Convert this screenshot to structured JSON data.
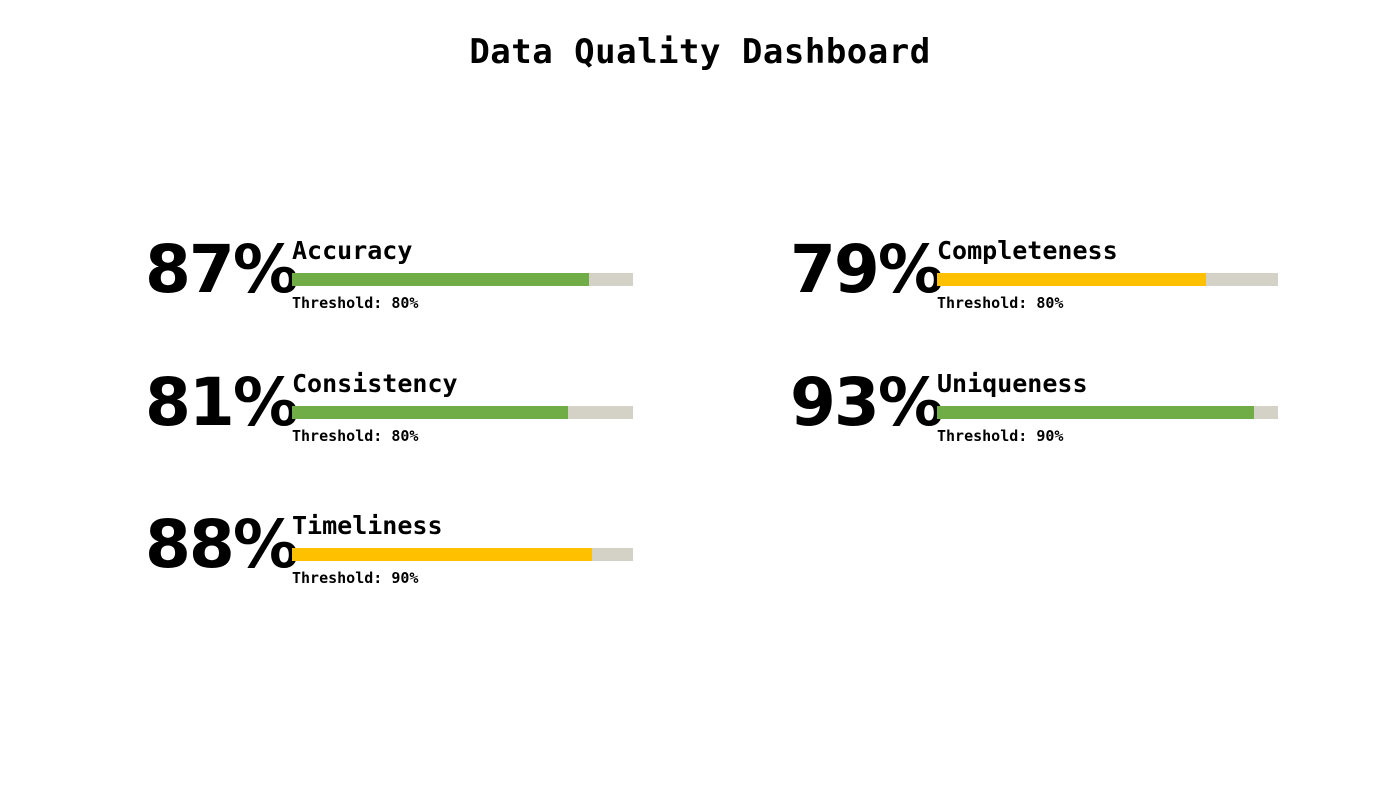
{
  "chart_data": {
    "type": "bar",
    "title": "Data Quality Dashboard",
    "categories": [
      "Accuracy",
      "Completeness",
      "Consistency",
      "Uniqueness",
      "Timeliness"
    ],
    "values": [
      87,
      79,
      81,
      93,
      88
    ],
    "thresholds": [
      80,
      80,
      80,
      90,
      90
    ],
    "ylim": [
      0,
      100
    ],
    "grid": false,
    "metrics": [
      {
        "value_text": "87%",
        "label": "Accuracy",
        "value": 87,
        "threshold": 80,
        "threshold_text": "Threshold: 80%",
        "color": "#70ad47"
      },
      {
        "value_text": "79%",
        "label": "Completeness",
        "value": 79,
        "threshold": 80,
        "threshold_text": "Threshold: 80%",
        "color": "#ffc000"
      },
      {
        "value_text": "81%",
        "label": "Consistency",
        "value": 81,
        "threshold": 80,
        "threshold_text": "Threshold: 80%",
        "color": "#70ad47"
      },
      {
        "value_text": "93%",
        "label": "Uniqueness",
        "value": 93,
        "threshold": 90,
        "threshold_text": "Threshold: 90%",
        "color": "#70ad47"
      },
      {
        "value_text": "88%",
        "label": "Timeliness",
        "value": 88,
        "threshold": 90,
        "threshold_text": "Threshold: 90%",
        "color": "#ffc000"
      }
    ],
    "colors": {
      "pass": "#70ad47",
      "fail": "#ffc000",
      "track": "#d4d1c6"
    }
  }
}
